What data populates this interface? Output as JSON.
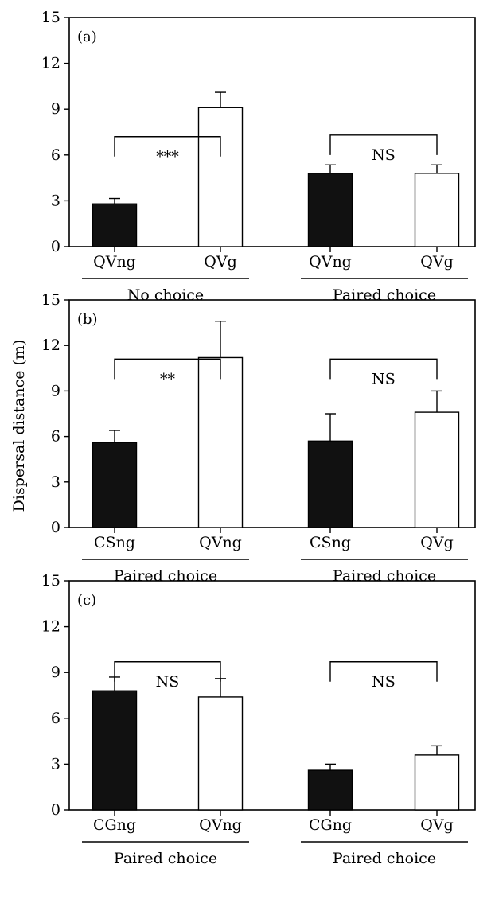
{
  "figure": {
    "y_axis_label": "Dispersal distance (m)"
  },
  "colors": {
    "ng_bar": "#111111",
    "g_bar": "#ffffff",
    "axis": "#000000"
  },
  "chart_data": [
    {
      "type": "bar",
      "panel_label": "(a)",
      "ylim": [
        0,
        15
      ],
      "yticks": [
        0,
        3,
        6,
        9,
        12,
        15
      ],
      "grid": false,
      "bars": [
        {
          "category": "QVng",
          "value": 2.8,
          "error": 0.35,
          "fill": "black"
        },
        {
          "category": "QVg",
          "value": 9.1,
          "error": 1.0,
          "fill": "white"
        },
        {
          "category": "QVng",
          "value": 4.8,
          "error": 0.55,
          "fill": "black"
        },
        {
          "category": "QVg",
          "value": 4.8,
          "error": 0.55,
          "fill": "white"
        }
      ],
      "groups": [
        {
          "label": "No choice",
          "bars": [
            0,
            1
          ]
        },
        {
          "label": "Paired choice",
          "bars": [
            2,
            3
          ]
        }
      ],
      "comparisons": [
        {
          "bars": [
            0,
            1
          ],
          "label": "***",
          "level": 7.2
        },
        {
          "bars": [
            2,
            3
          ],
          "label": "NS",
          "level": 7.3
        }
      ]
    },
    {
      "type": "bar",
      "panel_label": "(b)",
      "ylim": [
        0,
        15
      ],
      "yticks": [
        0,
        3,
        6,
        9,
        12,
        15
      ],
      "grid": false,
      "bars": [
        {
          "category": "CSng",
          "value": 5.6,
          "error": 0.8,
          "fill": "black"
        },
        {
          "category": "QVng",
          "value": 11.2,
          "error": 2.4,
          "fill": "white"
        },
        {
          "category": "CSng",
          "value": 5.7,
          "error": 1.8,
          "fill": "black"
        },
        {
          "category": "QVg",
          "value": 7.6,
          "error": 1.4,
          "fill": "white"
        }
      ],
      "groups": [
        {
          "label": "Paired choice",
          "bars": [
            0,
            1
          ]
        },
        {
          "label": "Paired choice",
          "bars": [
            2,
            3
          ]
        }
      ],
      "comparisons": [
        {
          "bars": [
            0,
            1
          ],
          "label": "**",
          "level": 11.1
        },
        {
          "bars": [
            2,
            3
          ],
          "label": "NS",
          "level": 11.1
        }
      ]
    },
    {
      "type": "bar",
      "panel_label": "(c)",
      "ylim": [
        0,
        15
      ],
      "yticks": [
        0,
        3,
        6,
        9,
        12,
        15
      ],
      "grid": false,
      "bars": [
        {
          "category": "CGng",
          "value": 7.8,
          "error": 0.9,
          "fill": "black"
        },
        {
          "category": "QVng",
          "value": 7.4,
          "error": 1.2,
          "fill": "white"
        },
        {
          "category": "CGng",
          "value": 2.6,
          "error": 0.4,
          "fill": "black"
        },
        {
          "category": "QVg",
          "value": 3.6,
          "error": 0.6,
          "fill": "white"
        }
      ],
      "groups": [
        {
          "label": "Paired choice",
          "bars": [
            0,
            1
          ]
        },
        {
          "label": "Paired choice",
          "bars": [
            2,
            3
          ]
        }
      ],
      "comparisons": [
        {
          "bars": [
            0,
            1
          ],
          "label": "NS",
          "level": 9.7
        },
        {
          "bars": [
            2,
            3
          ],
          "label": "NS",
          "level": 9.7
        }
      ]
    }
  ]
}
